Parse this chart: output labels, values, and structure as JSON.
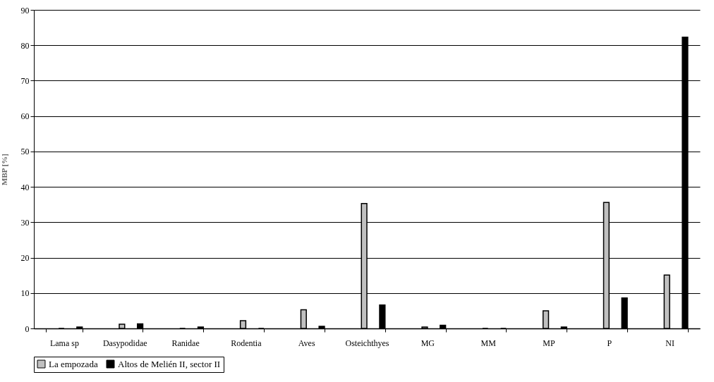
{
  "chart_data": {
    "type": "bar",
    "ylabel": "MBP [%]",
    "categories": [
      "Lama sp",
      "Dasypodidae",
      "Ranidae",
      "Rodentia",
      "Aves",
      "Osteichthyes",
      "MG",
      "MM",
      "MP",
      "P",
      "NI"
    ],
    "series": [
      {
        "name": "La empozada",
        "color": "#c0c0c0",
        "values": [
          0,
          1.2,
          0,
          2.2,
          5.3,
          35.3,
          0.4,
          0,
          5.0,
          35.6,
          15.1
        ]
      },
      {
        "name": "Altos de Melién II, sector II",
        "color": "#000000",
        "values": [
          0.4,
          1.3,
          0.4,
          0,
          0.6,
          6.6,
          0.9,
          0,
          0.4,
          8.6,
          82.3
        ]
      }
    ],
    "ylim": [
      0,
      90
    ],
    "yticks": [
      0,
      10,
      20,
      30,
      40,
      50,
      60,
      70,
      80,
      90
    ],
    "grid": "y",
    "legend": "bottom"
  }
}
